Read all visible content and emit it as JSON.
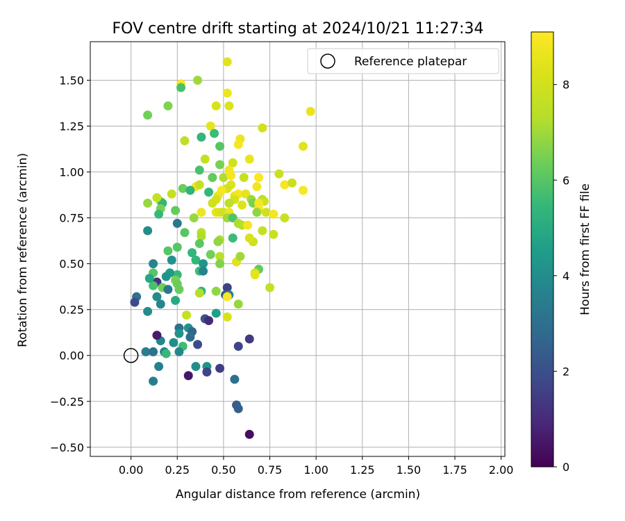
{
  "chart_data": {
    "type": "scatter",
    "title": "FOV centre drift starting at 2024/10/21 11:27:34",
    "xlabel": "Angular distance from reference (arcmin)",
    "ylabel": "Rotation from reference (arcmin)",
    "xlim": [
      -0.22,
      2.02
    ],
    "ylim": [
      -0.55,
      1.71
    ],
    "xticks": [
      "0.00",
      "0.25",
      "0.50",
      "0.75",
      "1.00",
      "1.25",
      "1.50",
      "1.75",
      "2.00"
    ],
    "yticks": [
      "−0.50",
      "−0.25",
      "0.00",
      "0.25",
      "0.50",
      "0.75",
      "1.00",
      "1.25",
      "1.50"
    ],
    "grid": true,
    "colormap": "viridis",
    "colorbar": {
      "label": "Hours from first FF file",
      "ticks": [
        "0",
        "2",
        "4",
        "6",
        "8"
      ],
      "range": [
        0,
        9.1
      ]
    },
    "legend": {
      "position": "top-right",
      "entries": [
        {
          "label": "Reference platepar",
          "marker": "open-circle"
        }
      ]
    },
    "reference_point": {
      "x": 0,
      "y": 0
    },
    "points": [
      [
        0.52,
        1.6,
        8.4
      ],
      [
        0.36,
        1.5,
        7.0
      ],
      [
        0.27,
        1.48,
        9.0
      ],
      [
        0.27,
        1.46,
        5.8
      ],
      [
        0.52,
        1.43,
        8.7
      ],
      [
        0.46,
        1.36,
        8.2
      ],
      [
        0.53,
        1.36,
        8.3
      ],
      [
        0.97,
        1.33,
        8.6
      ],
      [
        0.2,
        1.36,
        6.6
      ],
      [
        0.09,
        1.31,
        6.4
      ],
      [
        0.43,
        1.25,
        8.5
      ],
      [
        0.45,
        1.21,
        5.6
      ],
      [
        0.38,
        1.19,
        5.4
      ],
      [
        0.71,
        1.24,
        8.0
      ],
      [
        0.29,
        1.17,
        7.5
      ],
      [
        0.59,
        1.18,
        8.7
      ],
      [
        0.58,
        1.15,
        8.9
      ],
      [
        0.48,
        1.14,
        6.0
      ],
      [
        0.93,
        1.14,
        8.4
      ],
      [
        0.64,
        1.07,
        8.6
      ],
      [
        0.55,
        1.05,
        8.0
      ],
      [
        0.48,
        1.04,
        6.5
      ],
      [
        0.4,
        1.07,
        7.7
      ],
      [
        0.37,
        1.01,
        5.8
      ],
      [
        0.8,
        0.99,
        7.8
      ],
      [
        0.53,
        1.01,
        8.8
      ],
      [
        0.5,
        0.97,
        7.2
      ],
      [
        0.54,
        0.98,
        8.9
      ],
      [
        0.61,
        0.97,
        7.7
      ],
      [
        0.69,
        0.97,
        9.0
      ],
      [
        0.44,
        0.97,
        6.2
      ],
      [
        0.54,
        0.93,
        8.3
      ],
      [
        0.68,
        0.92,
        8.8
      ],
      [
        0.83,
        0.93,
        8.9
      ],
      [
        0.87,
        0.94,
        7.8
      ],
      [
        0.93,
        0.9,
        9.0
      ],
      [
        0.35,
        0.92,
        8.8
      ],
      [
        0.37,
        0.93,
        7.7
      ],
      [
        0.28,
        0.91,
        6.3
      ],
      [
        0.32,
        0.9,
        5.3
      ],
      [
        0.42,
        0.89,
        5.4
      ],
      [
        0.52,
        0.91,
        8.0
      ],
      [
        0.49,
        0.9,
        8.9
      ],
      [
        0.47,
        0.87,
        8.7
      ],
      [
        0.56,
        0.87,
        8.6
      ],
      [
        0.58,
        0.88,
        8.9
      ],
      [
        0.62,
        0.88,
        8.5
      ],
      [
        0.65,
        0.85,
        7.0
      ],
      [
        0.71,
        0.85,
        7.3
      ],
      [
        0.72,
        0.84,
        7.9
      ],
      [
        0.66,
        0.83,
        6.5
      ],
      [
        0.6,
        0.82,
        8.3
      ],
      [
        0.69,
        0.83,
        8.9
      ],
      [
        0.69,
        0.8,
        9.0
      ],
      [
        0.56,
        0.85,
        8.1
      ],
      [
        0.53,
        0.83,
        7.5
      ],
      [
        0.46,
        0.85,
        8.1
      ],
      [
        0.44,
        0.83,
        7.9
      ],
      [
        0.38,
        0.78,
        8.7
      ],
      [
        0.46,
        0.78,
        8.5
      ],
      [
        0.48,
        0.78,
        8.3
      ],
      [
        0.5,
        0.78,
        8.0
      ],
      [
        0.53,
        0.78,
        8.7
      ],
      [
        0.52,
        0.75,
        7.0
      ],
      [
        0.55,
        0.75,
        5.9
      ],
      [
        0.58,
        0.72,
        7.2
      ],
      [
        0.6,
        0.71,
        7.3
      ],
      [
        0.63,
        0.71,
        8.9
      ],
      [
        0.68,
        0.78,
        6.8
      ],
      [
        0.73,
        0.78,
        7.9
      ],
      [
        0.77,
        0.77,
        8.9
      ],
      [
        0.83,
        0.75,
        7.8
      ],
      [
        0.71,
        0.68,
        7.7
      ],
      [
        0.77,
        0.66,
        7.8
      ],
      [
        0.66,
        0.62,
        7.9
      ],
      [
        0.64,
        0.64,
        8.2
      ],
      [
        0.55,
        0.64,
        5.6
      ],
      [
        0.48,
        0.63,
        7.2
      ],
      [
        0.47,
        0.62,
        6.8
      ],
      [
        0.38,
        0.67,
        7.4
      ],
      [
        0.38,
        0.65,
        7.2
      ],
      [
        0.34,
        0.75,
        6.9
      ],
      [
        0.29,
        0.67,
        6.0
      ],
      [
        0.25,
        0.72,
        3.3
      ],
      [
        0.24,
        0.79,
        6.2
      ],
      [
        0.22,
        0.88,
        7.7
      ],
      [
        0.16,
        0.84,
        6.9
      ],
      [
        0.17,
        0.83,
        5.4
      ],
      [
        0.14,
        0.86,
        7.7
      ],
      [
        0.09,
        0.83,
        6.9
      ],
      [
        0.16,
        0.8,
        6.5
      ],
      [
        0.15,
        0.77,
        5.5
      ],
      [
        0.09,
        0.68,
        4.0
      ],
      [
        0.2,
        0.57,
        6.0
      ],
      [
        0.25,
        0.59,
        6.0
      ],
      [
        0.37,
        0.61,
        6.1
      ],
      [
        0.33,
        0.56,
        5.4
      ],
      [
        0.35,
        0.52,
        5.4
      ],
      [
        0.39,
        0.5,
        4.2
      ],
      [
        0.22,
        0.52,
        4.2
      ],
      [
        0.43,
        0.55,
        6.4
      ],
      [
        0.48,
        0.54,
        7.4
      ],
      [
        0.48,
        0.5,
        6.6
      ],
      [
        0.57,
        0.51,
        8.4
      ],
      [
        0.59,
        0.54,
        7.0
      ],
      [
        0.69,
        0.47,
        6.2
      ],
      [
        0.67,
        0.45,
        7.9
      ],
      [
        0.67,
        0.44,
        8.5
      ],
      [
        0.75,
        0.37,
        7.7
      ],
      [
        0.37,
        0.46,
        5.6
      ],
      [
        0.39,
        0.46,
        3.7
      ],
      [
        0.25,
        0.44,
        5.5
      ],
      [
        0.24,
        0.41,
        6.5
      ],
      [
        0.25,
        0.39,
        6.3
      ],
      [
        0.26,
        0.36,
        6.3
      ],
      [
        0.21,
        0.45,
        4.5
      ],
      [
        0.19,
        0.43,
        4.2
      ],
      [
        0.14,
        0.4,
        1.2
      ],
      [
        0.12,
        0.5,
        3.7
      ],
      [
        0.12,
        0.45,
        6.0
      ],
      [
        0.12,
        0.38,
        5.8
      ],
      [
        0.1,
        0.42,
        4.9
      ],
      [
        0.17,
        0.37,
        6.4
      ],
      [
        0.2,
        0.36,
        3.3
      ],
      [
        0.14,
        0.32,
        4.0
      ],
      [
        0.16,
        0.28,
        3.8
      ],
      [
        0.09,
        0.24,
        4.0
      ],
      [
        0.24,
        0.3,
        5.0
      ],
      [
        0.38,
        0.35,
        5.3
      ],
      [
        0.37,
        0.34,
        7.3
      ],
      [
        0.46,
        0.35,
        6.8
      ],
      [
        0.52,
        0.37,
        1.6
      ],
      [
        0.51,
        0.33,
        2.2
      ],
      [
        0.53,
        0.33,
        3.6
      ],
      [
        0.52,
        0.32,
        9.0
      ],
      [
        0.58,
        0.28,
        6.9
      ],
      [
        0.46,
        0.23,
        4.6
      ],
      [
        0.52,
        0.21,
        8.2
      ],
      [
        0.3,
        0.22,
        7.7
      ],
      [
        0.4,
        0.2,
        2.1
      ],
      [
        0.42,
        0.19,
        1.0
      ],
      [
        0.03,
        0.32,
        3.0
      ],
      [
        0.02,
        0.29,
        1.9
      ],
      [
        0.26,
        0.15,
        3.0
      ],
      [
        0.31,
        0.15,
        4.2
      ],
      [
        0.33,
        0.13,
        2.7
      ],
      [
        0.26,
        0.12,
        4.2
      ],
      [
        0.32,
        0.1,
        2.9
      ],
      [
        0.36,
        0.06,
        1.9
      ],
      [
        0.16,
        0.08,
        3.8
      ],
      [
        0.23,
        0.07,
        4.0
      ],
      [
        0.28,
        0.05,
        5.6
      ],
      [
        0.26,
        0.02,
        3.8
      ],
      [
        0.14,
        0.11,
        0.6
      ],
      [
        0.08,
        0.02,
        3.5
      ],
      [
        0.12,
        0.02,
        3.0
      ],
      [
        0.18,
        0.02,
        3.6
      ],
      [
        0.19,
        0.01,
        5.5
      ],
      [
        0.15,
        -0.06,
        3.6
      ],
      [
        0.12,
        -0.14,
        3.5
      ],
      [
        0.31,
        -0.11,
        0.5
      ],
      [
        0.35,
        -0.06,
        4.0
      ],
      [
        0.41,
        -0.06,
        4.2
      ],
      [
        0.41,
        -0.09,
        1.7
      ],
      [
        0.48,
        -0.07,
        1.5
      ],
      [
        0.56,
        -0.13,
        3.0
      ],
      [
        0.57,
        -0.27,
        2.4
      ],
      [
        0.58,
        -0.29,
        2.5
      ],
      [
        0.58,
        0.05,
        1.7
      ],
      [
        0.64,
        0.09,
        1.4
      ],
      [
        0.64,
        -0.43,
        0.3
      ]
    ]
  }
}
